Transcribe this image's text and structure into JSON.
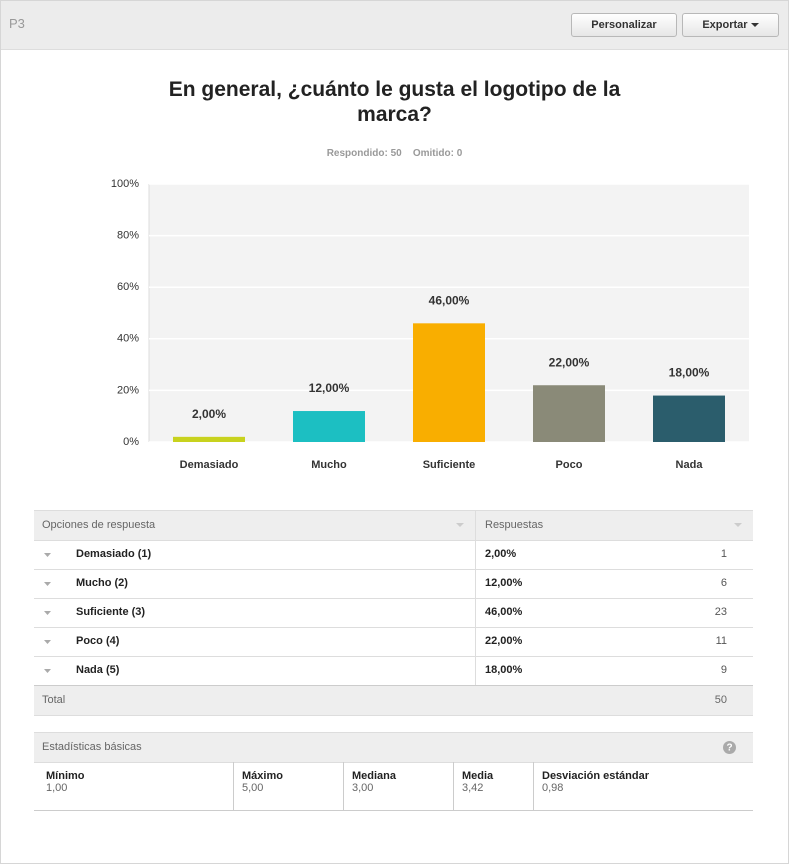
{
  "header": {
    "question_id": "P3",
    "buttons": [
      "Personalizar",
      "Exportar"
    ]
  },
  "chart_data": {
    "type": "bar",
    "title": "En general, ¿cuánto le gusta el logotipo de la marca?",
    "subtitle": [
      "Respondido: 50",
      "Omitido: 0"
    ],
    "categories": [
      "Demasiado",
      "Mucho",
      "Suficiente",
      "Poco",
      "Nada"
    ],
    "values": [
      2,
      12,
      46,
      22,
      18
    ],
    "value_labels": [
      "2,00%",
      "12,00%",
      "46,00%",
      "22,00%",
      "18,00%"
    ],
    "colors": [
      "#c8d21e",
      "#1cbfc2",
      "#f9ae00",
      "#8a8a78",
      "#2b5d6c"
    ],
    "ylim": [
      0,
      100
    ],
    "yticks": [
      {
        "value": 0,
        "label": "0%"
      },
      {
        "value": 20,
        "label": "20%"
      },
      {
        "value": 40,
        "label": "40%"
      },
      {
        "value": 60,
        "label": "60%"
      },
      {
        "value": 80,
        "label": "80%"
      },
      {
        "value": 100,
        "label": "100%"
      }
    ],
    "grid": true
  },
  "table": {
    "columns": [
      "Opciones de respuesta",
      "Respuestas"
    ],
    "rows": [
      [
        "Demasiado (1)",
        "2,00%",
        1
      ],
      [
        "Mucho (2)",
        "12,00%",
        6
      ],
      [
        "Suficiente (3)",
        "46,00%",
        23
      ],
      [
        "Poco (4)",
        "22,00%",
        11
      ],
      [
        "Nada (5)",
        "18,00%",
        9
      ]
    ],
    "total": [
      "Total",
      50
    ]
  },
  "stats": {
    "title": "Estadísticas básicas",
    "items": [
      [
        "Mínimo",
        "1,00"
      ],
      [
        "Máximo",
        "5,00"
      ],
      [
        "Mediana",
        "3,00"
      ],
      [
        "Media",
        "3,42"
      ],
      [
        "Desviación estándar",
        "0,98"
      ]
    ]
  }
}
